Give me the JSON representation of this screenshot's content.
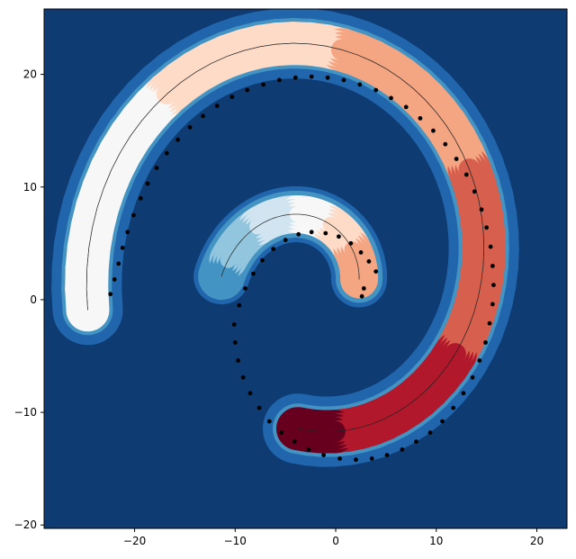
{
  "chart_data": {
    "type": "contour-scatter",
    "title": "",
    "xlabel": "",
    "ylabel": "",
    "xlim": [
      -29,
      23
    ],
    "ylim": [
      -20.3,
      25.8
    ],
    "xticks": [
      -20,
      -10,
      0,
      10,
      20
    ],
    "yticks": [
      -20,
      -10,
      0,
      10,
      20
    ],
    "xtick_labels": [
      "−20",
      "−10",
      "0",
      "10",
      "20"
    ],
    "ytick_labels": [
      "−20",
      "−10",
      "0",
      "10",
      "20"
    ],
    "colormap": [
      "#053061",
      "#2166ac",
      "#4393c3",
      "#92c5de",
      "#d1e5f0",
      "#f7f7f7",
      "#fddbc7",
      "#f4a582",
      "#d6604d",
      "#b2182b",
      "#67001f"
    ],
    "background_color": "#0f3b73",
    "point_color": "#000000",
    "spiral_outer": {
      "start_angle_deg": 190,
      "end_angle_deg": -95,
      "start_radius": 22.5,
      "end_radius": 14.5,
      "center": [
        -2.5,
        3
      ]
    },
    "spiral_inner": {
      "start_angle_deg": 170,
      "end_angle_deg": 15,
      "start_radius": 9,
      "end_radius": 5,
      "center": [
        -2.5,
        0.5
      ]
    },
    "points": [
      [
        -22.4,
        0.5
      ],
      [
        -22.0,
        1.8
      ],
      [
        -21.6,
        3.2
      ],
      [
        -21.2,
        4.6
      ],
      [
        -20.7,
        6.0
      ],
      [
        -20.1,
        7.5
      ],
      [
        -19.4,
        9.0
      ],
      [
        -18.7,
        10.3
      ],
      [
        -17.8,
        11.7
      ],
      [
        -16.8,
        13.0
      ],
      [
        -15.7,
        14.2
      ],
      [
        -14.5,
        15.3
      ],
      [
        -13.2,
        16.3
      ],
      [
        -11.8,
        17.2
      ],
      [
        -10.3,
        18.0
      ],
      [
        -8.8,
        18.6
      ],
      [
        -7.2,
        19.1
      ],
      [
        -5.6,
        19.5
      ],
      [
        -4.0,
        19.7
      ],
      [
        -2.4,
        19.8
      ],
      [
        -0.8,
        19.7
      ],
      [
        0.8,
        19.5
      ],
      [
        2.4,
        19.1
      ],
      [
        4.0,
        18.6
      ],
      [
        5.5,
        17.9
      ],
      [
        7.0,
        17.1
      ],
      [
        8.4,
        16.1
      ],
      [
        9.7,
        15.0
      ],
      [
        10.9,
        13.8
      ],
      [
        12.0,
        12.5
      ],
      [
        13.0,
        11.1
      ],
      [
        13.8,
        9.6
      ],
      [
        14.5,
        8.0
      ],
      [
        15.0,
        6.4
      ],
      [
        15.4,
        4.7
      ],
      [
        15.6,
        3.0
      ],
      [
        15.7,
        1.3
      ],
      [
        15.6,
        -0.4
      ],
      [
        15.3,
        -2.1
      ],
      [
        14.9,
        -3.8
      ],
      [
        14.3,
        -5.4
      ],
      [
        13.6,
        -6.9
      ],
      [
        12.7,
        -8.3
      ],
      [
        11.7,
        -9.6
      ],
      [
        10.6,
        -10.8
      ],
      [
        9.4,
        -11.8
      ],
      [
        8.0,
        -12.6
      ],
      [
        6.6,
        -13.3
      ],
      [
        5.1,
        -13.8
      ],
      [
        3.6,
        -14.1
      ],
      [
        2.0,
        -14.2
      ],
      [
        0.4,
        -14.1
      ],
      [
        -1.2,
        -13.8
      ],
      [
        -2.7,
        -13.3
      ],
      [
        -4.1,
        -12.6
      ],
      [
        -5.4,
        -11.8
      ],
      [
        -6.6,
        -10.8
      ],
      [
        -7.6,
        -9.6
      ],
      [
        -8.5,
        -8.3
      ],
      [
        -9.2,
        -6.9
      ],
      [
        -9.7,
        -5.4
      ],
      [
        -10.0,
        -3.8
      ],
      [
        -10.1,
        -2.2
      ],
      [
        -9.6,
        -0.5
      ],
      [
        -9.0,
        1.0
      ],
      [
        -8.2,
        2.3
      ],
      [
        -7.3,
        3.5
      ],
      [
        -6.2,
        4.5
      ],
      [
        -5.0,
        5.3
      ],
      [
        -3.7,
        5.8
      ],
      [
        -2.4,
        6.0
      ],
      [
        -1.0,
        5.9
      ],
      [
        0.3,
        5.6
      ],
      [
        1.5,
        5.0
      ],
      [
        2.5,
        4.2
      ],
      [
        3.3,
        3.4
      ],
      [
        4.0,
        2.5
      ],
      [
        2.8,
        1.0
      ],
      [
        2.6,
        0.3
      ]
    ]
  }
}
